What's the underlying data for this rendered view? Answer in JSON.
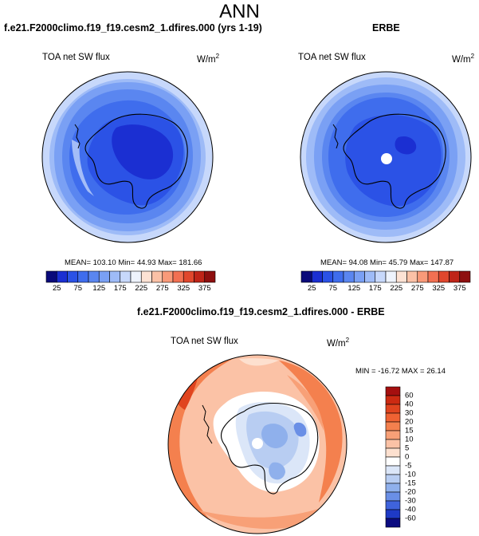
{
  "main_title": "ANN",
  "panels": [
    {
      "title": "f.e21.F2000climo.f19_f19.cesm2_1.dfires.000 (yrs 1-19)",
      "variable": "TOA net SW flux",
      "units_base": "W/m",
      "units_exp": "2",
      "stats": "MEAN= 103.10  Min=  44.93  Max= 181.66"
    },
    {
      "title": "ERBE",
      "variable": "TOA net SW flux",
      "units_base": "W/m",
      "units_exp": "2",
      "stats": "MEAN= 94.08  Min=  45.79  Max= 147.87"
    },
    {
      "title": "f.e21.F2000climo.f19_f19.cesm2_1.dfires.000 - ERBE",
      "variable": "TOA net SW flux",
      "units_base": "W/m",
      "units_exp": "2",
      "stats": "MIN = -16.72 MAX =  26.14"
    }
  ],
  "chart_data": [
    {
      "type": "heatmap",
      "projection": "south-polar stereographic",
      "title": "f.e21.F2000climo.f19_f19.cesm2_1.dfires.000 (yrs 1-19)",
      "variable": "TOA net SW flux",
      "units": "W/m2",
      "stats": {
        "mean": 103.1,
        "min": 44.93,
        "max": 181.66
      },
      "colorbar": {
        "orientation": "horizontal",
        "tick_labels": [
          "25",
          "75",
          "125",
          "175",
          "225",
          "275",
          "325",
          "375"
        ],
        "levels": [
          25,
          50,
          75,
          100,
          125,
          150,
          175,
          200,
          225,
          250,
          275,
          300,
          325,
          350,
          375
        ],
        "colors": [
          "#0a0a7a",
          "#1b2fd2",
          "#2b52e6",
          "#3f6ded",
          "#5a86f0",
          "#7aa0f4",
          "#9ebbf7",
          "#c7d8fb",
          "#eef3fd",
          "#fde2d4",
          "#fbc1a6",
          "#f99a79",
          "#f27052",
          "#e0472d",
          "#bf2418",
          "#8e0f0f"
        ]
      }
    },
    {
      "type": "heatmap",
      "projection": "south-polar stereographic",
      "title": "ERBE",
      "variable": "TOA net SW flux",
      "units": "W/m2",
      "stats": {
        "mean": 94.08,
        "min": 45.79,
        "max": 147.87
      },
      "colorbar": {
        "orientation": "horizontal",
        "tick_labels": [
          "25",
          "75",
          "125",
          "175",
          "225",
          "275",
          "325",
          "375"
        ],
        "levels": [
          25,
          50,
          75,
          100,
          125,
          150,
          175,
          200,
          225,
          250,
          275,
          300,
          325,
          350,
          375
        ],
        "colors": [
          "#0a0a7a",
          "#1b2fd2",
          "#2b52e6",
          "#3f6ded",
          "#5a86f0",
          "#7aa0f4",
          "#9ebbf7",
          "#c7d8fb",
          "#eef3fd",
          "#fde2d4",
          "#fbc1a6",
          "#f99a79",
          "#f27052",
          "#e0472d",
          "#bf2418",
          "#8e0f0f"
        ]
      }
    },
    {
      "type": "heatmap",
      "projection": "south-polar stereographic",
      "title": "f.e21.F2000climo.f19_f19.cesm2_1.dfires.000 - ERBE",
      "variable": "TOA net SW flux",
      "units": "W/m2",
      "stats": {
        "min": -16.72,
        "max": 26.14
      },
      "colorbar": {
        "orientation": "vertical",
        "tick_labels": [
          "60",
          "40",
          "30",
          "20",
          "15",
          "10",
          "5",
          "0",
          "-5",
          "-10",
          "-15",
          "-20",
          "-30",
          "-40",
          "-60"
        ],
        "colors": [
          "#a50f0f",
          "#cc2a12",
          "#e0441f",
          "#ef6233",
          "#f4804e",
          "#f8a077",
          "#fbc2a6",
          "#fde0cf",
          "#ffffff",
          "#dbe6f8",
          "#b8cdf2",
          "#8fb0ec",
          "#6a8fe6",
          "#3f63dc",
          "#1e3ac6",
          "#0b0b80"
        ]
      }
    }
  ]
}
